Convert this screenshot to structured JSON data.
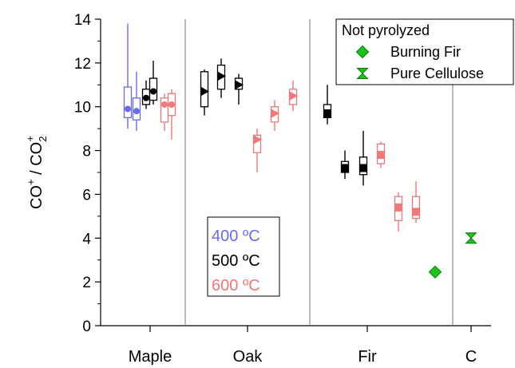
{
  "chart_data": {
    "type": "box",
    "ylabel": {
      "main": "CO",
      "sup1": "+",
      "slash": " / CO",
      "sub": "2",
      "sup2": "+"
    },
    "ylim": [
      0,
      14
    ],
    "yticks": [
      0,
      2,
      4,
      6,
      8,
      10,
      12,
      14
    ],
    "categories": [
      "Maple",
      "Oak",
      "Fir",
      "C"
    ],
    "colors": {
      "400": "#6a6af0",
      "500": "#000000",
      "600": "#f07878",
      "reference": "#19c419"
    },
    "temperature_legend": [
      {
        "text": "400 ºC",
        "color": "#6a6af0"
      },
      {
        "text": "500 ºC",
        "color": "#000000"
      },
      {
        "text": "600 ºC",
        "color": "#f07878"
      }
    ],
    "reference_legend": {
      "title": "Not pyrolyzed",
      "items": [
        {
          "text": "Burning Fir",
          "marker": "diamond"
        },
        {
          "text": "Pure Cellulose",
          "marker": "hourglass"
        }
      ]
    },
    "boxes": [
      {
        "category": "Maple",
        "temp": "400",
        "marker": "circle",
        "median": 9.9,
        "q1": 9.5,
        "q3": 10.9,
        "wlo": 9.0,
        "whi": 13.8
      },
      {
        "category": "Maple",
        "temp": "400",
        "marker": "circle",
        "median": 9.8,
        "q1": 9.4,
        "q3": 10.4,
        "wlo": 8.9,
        "whi": 11.6
      },
      {
        "category": "Maple",
        "temp": "500",
        "marker": "circle",
        "median": 10.4,
        "q1": 10.1,
        "q3": 10.8,
        "wlo": 9.9,
        "whi": 11.2
      },
      {
        "category": "Maple",
        "temp": "500",
        "marker": "circle",
        "median": 10.7,
        "q1": 10.3,
        "q3": 11.3,
        "wlo": 10.1,
        "whi": 12.1
      },
      {
        "category": "Maple",
        "temp": "600",
        "marker": "circle",
        "median": 10.1,
        "q1": 9.3,
        "q3": 10.4,
        "wlo": 8.9,
        "whi": 10.6
      },
      {
        "category": "Maple",
        "temp": "600",
        "marker": "circle",
        "median": 10.1,
        "q1": 9.6,
        "q3": 10.6,
        "wlo": 8.5,
        "whi": 10.8
      },
      {
        "category": "Oak",
        "temp": "500",
        "marker": "triangle",
        "median": 10.7,
        "q1": 10.0,
        "q3": 11.6,
        "wlo": 9.6,
        "whi": 11.7
      },
      {
        "category": "Oak",
        "temp": "500",
        "marker": "triangle",
        "median": 11.4,
        "q1": 10.8,
        "q3": 11.9,
        "wlo": 10.4,
        "whi": 12.2
      },
      {
        "category": "Oak",
        "temp": "500",
        "marker": "triangle",
        "median": 11.0,
        "q1": 10.8,
        "q3": 11.3,
        "wlo": 10.1,
        "whi": 11.5
      },
      {
        "category": "Oak",
        "temp": "600",
        "marker": "triangle",
        "median": 8.5,
        "q1": 7.9,
        "q3": 8.7,
        "wlo": 7.0,
        "whi": 9.0
      },
      {
        "category": "Oak",
        "temp": "600",
        "marker": "triangle",
        "median": 9.7,
        "q1": 9.3,
        "q3": 10.0,
        "wlo": 8.9,
        "whi": 10.3
      },
      {
        "category": "Oak",
        "temp": "600",
        "marker": "triangle",
        "median": 10.5,
        "q1": 10.1,
        "q3": 10.8,
        "wlo": 9.8,
        "whi": 11.2
      },
      {
        "category": "Fir",
        "temp": "500",
        "marker": "square",
        "median": 9.7,
        "q1": 9.5,
        "q3": 10.1,
        "wlo": 9.2,
        "whi": 11.0
      },
      {
        "category": "Fir",
        "temp": "500",
        "marker": "square",
        "median": 7.2,
        "q1": 7.0,
        "q3": 7.5,
        "wlo": 6.7,
        "whi": 8.0
      },
      {
        "category": "Fir",
        "temp": "500",
        "marker": "square",
        "median": 7.2,
        "q1": 6.9,
        "q3": 7.7,
        "wlo": 6.4,
        "whi": 8.9
      },
      {
        "category": "Fir",
        "temp": "600",
        "marker": "square",
        "median": 7.8,
        "q1": 7.4,
        "q3": 8.3,
        "wlo": 7.2,
        "whi": 8.4
      },
      {
        "category": "Fir",
        "temp": "600",
        "marker": "square",
        "median": 5.4,
        "q1": 4.8,
        "q3": 5.9,
        "wlo": 4.3,
        "whi": 6.1
      },
      {
        "category": "Fir",
        "temp": "600",
        "marker": "square",
        "median": 5.2,
        "q1": 4.9,
        "q3": 5.9,
        "wlo": 4.7,
        "whi": 6.6
      }
    ],
    "reference_points": [
      {
        "name": "Burning Fir",
        "category": "Fir",
        "value": 2.45,
        "marker": "diamond"
      },
      {
        "name": "Pure Cellulose",
        "category": "C",
        "value": 4.0,
        "marker": "hourglass"
      }
    ]
  }
}
